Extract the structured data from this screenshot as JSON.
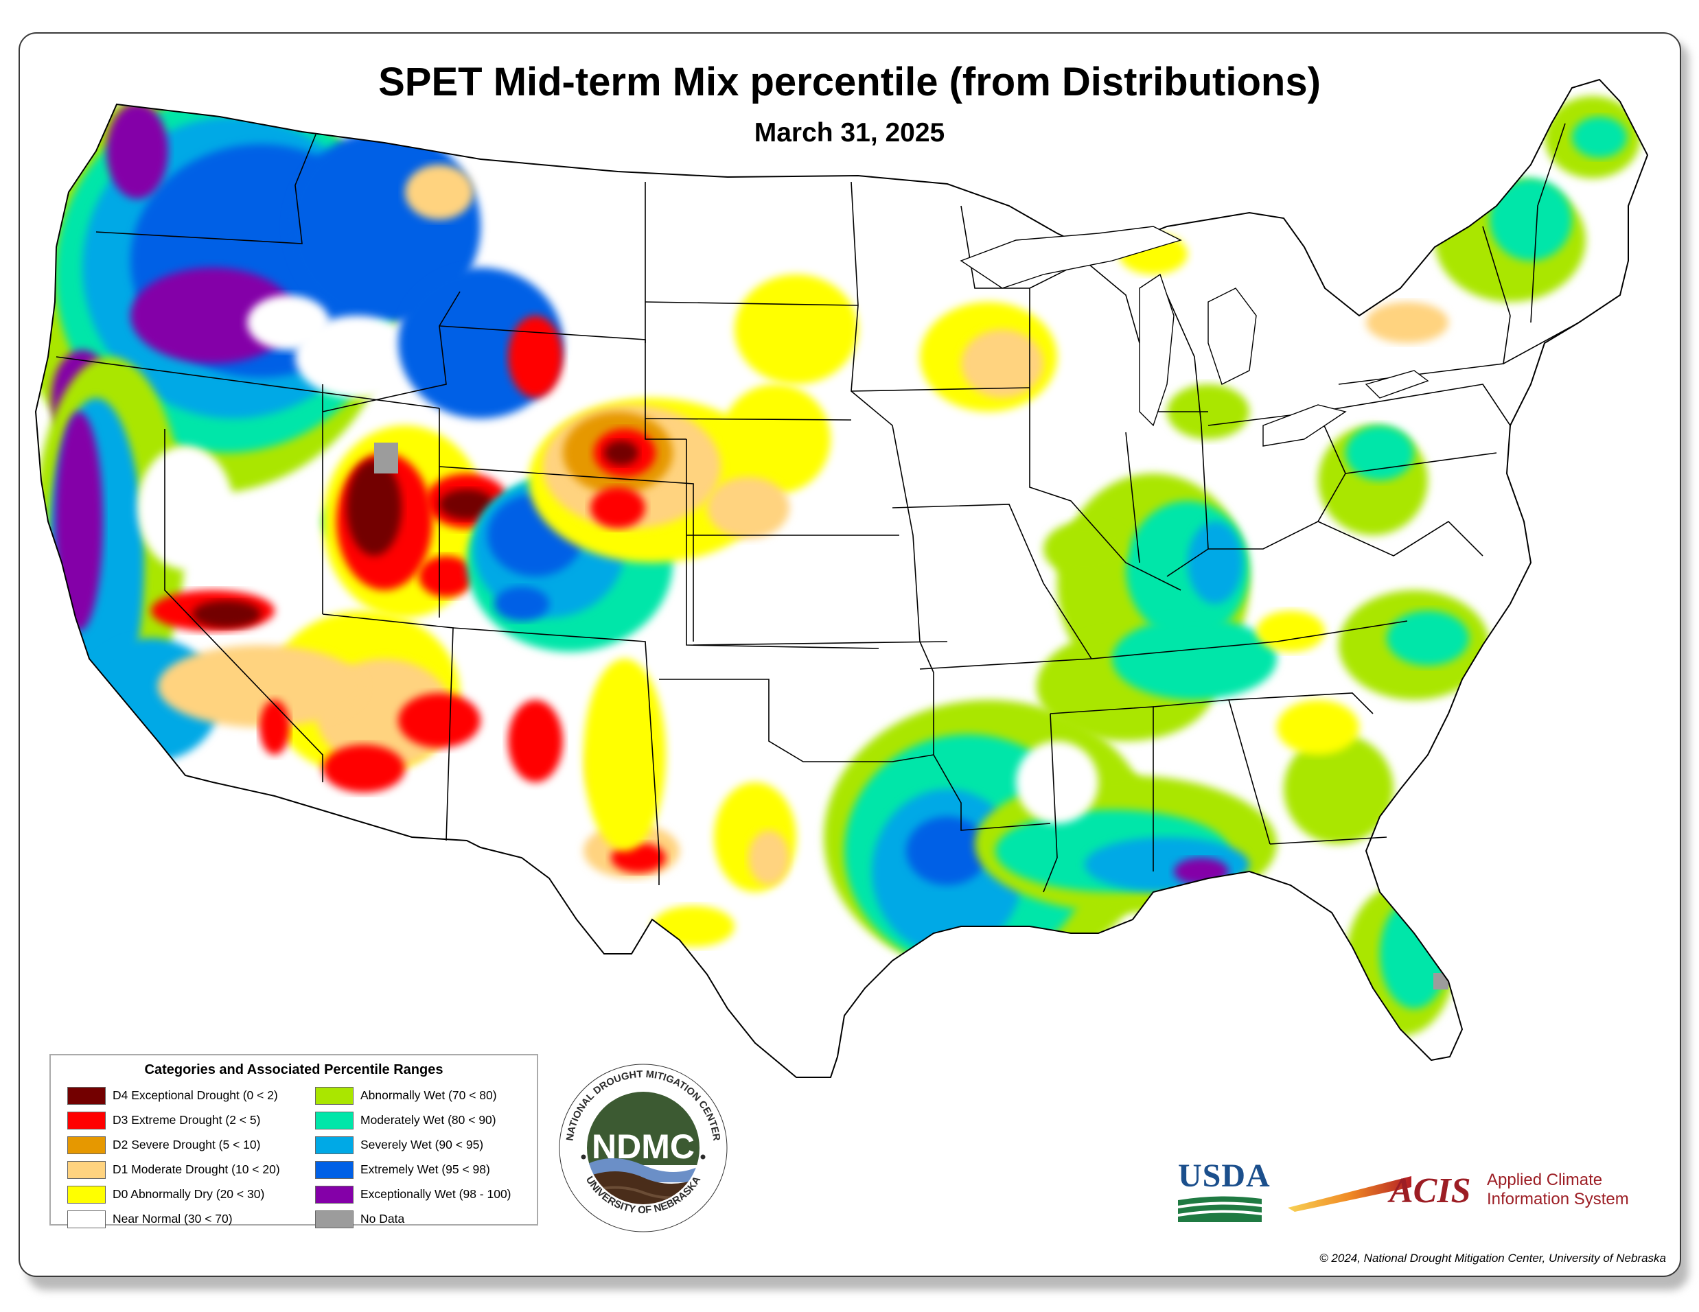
{
  "title": "SPET Mid-term Mix percentile (from Distributions)",
  "subtitle": "March 31, 2025",
  "legend": {
    "title": "Categories and Associated Percentile Ranges",
    "categories": [
      {
        "label": "D4 Exceptional Drought (0 < 2)",
        "color": "#730000"
      },
      {
        "label": "D3 Extreme Drought (2 < 5)",
        "color": "#ff0000"
      },
      {
        "label": "D2 Severe Drought (5 < 10)",
        "color": "#e69800"
      },
      {
        "label": "D1 Moderate Drought (10 < 20)",
        "color": "#ffd37f"
      },
      {
        "label": "D0 Abnormally Dry (20 < 30)",
        "color": "#ffff00"
      },
      {
        "label": "Near Normal (30 < 70)",
        "color": "#ffffff"
      },
      {
        "label": "Abnormally Wet (70 < 80)",
        "color": "#aae600"
      },
      {
        "label": "Moderately Wet (80 < 90)",
        "color": "#00e6a9"
      },
      {
        "label": "Severely Wet (90 < 95)",
        "color": "#00a9e6"
      },
      {
        "label": "Extremely Wet (95 < 98)",
        "color": "#0060e6"
      },
      {
        "label": "Exceptionally Wet (98 - 100)",
        "color": "#8400a8"
      },
      {
        "label": "No Data",
        "color": "#9c9c9c"
      }
    ]
  },
  "logos": {
    "ndmc_top": "NATIONAL DROUGHT MITIGATION CENTER",
    "ndmc_center": "NDMC",
    "ndmc_bottom": "UNIVERSITY OF NEBRASKA",
    "usda": "USDA",
    "acis": "ACIS",
    "acis_line1": "Applied Climate",
    "acis_line2": "Information System"
  },
  "copyright": "© 2024, National Drought Mitigation Center, University of Nebraska"
}
